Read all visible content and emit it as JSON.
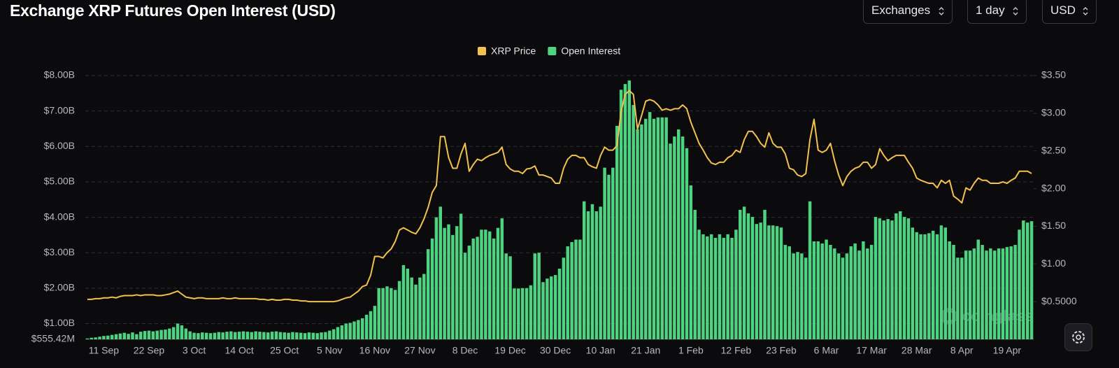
{
  "header": {
    "controls": [
      "Exchanges",
      "1 day",
      "USD"
    ]
  },
  "watermark": "coinglass",
  "chart_data": {
    "type": "bar",
    "title": "Exchange XRP Futures Open Interest (USD)",
    "categories": [
      null,
      null,
      null,
      null,
      "11 Sep",
      null,
      null,
      null,
      null,
      null,
      null,
      null,
      null,
      null,
      null,
      "22 Sep",
      null,
      null,
      null,
      null,
      null,
      null,
      null,
      null,
      null,
      null,
      "3 Oct",
      null,
      null,
      null,
      null,
      null,
      null,
      null,
      null,
      null,
      null,
      "14 Oct",
      null,
      null,
      null,
      null,
      null,
      null,
      null,
      null,
      null,
      null,
      "25 Oct",
      null,
      null,
      null,
      null,
      null,
      null,
      null,
      null,
      null,
      null,
      "5 Nov",
      null,
      null,
      null,
      null,
      null,
      null,
      null,
      null,
      null,
      null,
      "16 Nov",
      null,
      null,
      null,
      null,
      null,
      null,
      null,
      null,
      null,
      null,
      "27 Nov",
      null,
      null,
      null,
      null,
      null,
      null,
      null,
      null,
      null,
      null,
      "8 Dec",
      null,
      null,
      null,
      null,
      null,
      null,
      null,
      null,
      null,
      null,
      "19 Dec",
      null,
      null,
      null,
      null,
      null,
      null,
      null,
      null,
      null,
      null,
      "30 Dec",
      null,
      null,
      null,
      null,
      null,
      null,
      null,
      null,
      null,
      null,
      "10 Jan",
      null,
      null,
      null,
      null,
      null,
      null,
      null,
      null,
      null,
      null,
      "21 Jan",
      null,
      null,
      null,
      null,
      null,
      null,
      null,
      null,
      null,
      null,
      "1 Feb",
      null,
      null,
      null,
      null,
      null,
      null,
      null,
      null,
      null,
      null,
      "12 Feb",
      null,
      null,
      null,
      null,
      null,
      null,
      null,
      null,
      null,
      null,
      "23 Feb",
      null,
      null,
      null,
      null,
      null,
      null,
      null,
      null,
      null,
      null,
      "6 Mar",
      null,
      null,
      null,
      null,
      null,
      null,
      null,
      null,
      null,
      null,
      "17 Mar",
      null,
      null,
      null,
      null,
      null,
      null,
      null,
      null,
      null,
      null,
      "28 Mar",
      null,
      null,
      null,
      null,
      null,
      null,
      null,
      null,
      null,
      null,
      "8 Apr",
      null,
      null,
      null,
      null,
      null,
      null,
      null,
      null,
      null,
      null,
      "19 Apr",
      null,
      null,
      null,
      null,
      null,
      null
    ],
    "series": [
      {
        "name": "XRP Price",
        "type": "line",
        "axis": "y2",
        "color": "#f2c14e",
        "values": [
          0.53,
          0.53,
          0.54,
          0.54,
          0.55,
          0.55,
          0.56,
          0.55,
          0.57,
          0.58,
          0.58,
          0.58,
          0.59,
          0.58,
          0.59,
          0.59,
          0.59,
          0.58,
          0.58,
          0.59,
          0.6,
          0.62,
          0.64,
          0.6,
          0.56,
          0.55,
          0.54,
          0.55,
          0.55,
          0.54,
          0.54,
          0.54,
          0.54,
          0.55,
          0.54,
          0.54,
          0.55,
          0.54,
          0.54,
          0.54,
          0.54,
          0.54,
          0.53,
          0.53,
          0.52,
          0.53,
          0.52,
          0.52,
          0.53,
          0.53,
          0.52,
          0.52,
          0.51,
          0.51,
          0.5,
          0.5,
          0.5,
          0.5,
          0.5,
          0.5,
          0.5,
          0.51,
          0.53,
          0.55,
          0.56,
          0.6,
          0.64,
          0.7,
          0.72,
          0.85,
          1.1,
          1.1,
          1.08,
          1.15,
          1.2,
          1.3,
          1.45,
          1.48,
          1.45,
          1.42,
          1.4,
          1.48,
          1.6,
          1.75,
          1.95,
          2.04,
          2.69,
          2.69,
          2.41,
          2.27,
          2.27,
          2.46,
          2.6,
          2.23,
          2.32,
          2.39,
          2.37,
          2.41,
          2.44,
          2.46,
          2.48,
          2.55,
          2.32,
          2.26,
          2.23,
          2.23,
          2.2,
          2.26,
          2.27,
          2.3,
          2.18,
          2.18,
          2.16,
          2.14,
          2.07,
          2.07,
          2.27,
          2.39,
          2.44,
          2.44,
          2.41,
          2.41,
          2.32,
          2.29,
          2.27,
          2.44,
          2.55,
          2.51,
          2.51,
          2.57,
          3.02,
          3.25,
          3.3,
          3.25,
          2.79,
          2.97,
          3.16,
          3.18,
          3.16,
          3.11,
          3.04,
          3.06,
          3.04,
          3.06,
          3.06,
          3.11,
          3.06,
          2.88,
          2.74,
          2.6,
          2.51,
          2.41,
          2.34,
          2.32,
          2.35,
          2.35,
          2.41,
          2.44,
          2.51,
          2.48,
          2.65,
          2.76,
          2.76,
          2.69,
          2.6,
          2.55,
          2.74,
          2.6,
          2.55,
          2.55,
          2.46,
          2.27,
          2.25,
          2.18,
          2.16,
          2.2,
          2.65,
          2.92,
          2.51,
          2.48,
          2.51,
          2.6,
          2.37,
          2.18,
          2.04,
          2.16,
          2.23,
          2.27,
          2.29,
          2.35,
          2.35,
          2.27,
          2.32,
          2.53,
          2.44,
          2.37,
          2.41,
          2.44,
          2.44,
          2.44,
          2.35,
          2.27,
          2.14,
          2.11,
          2.09,
          2.07,
          2.07,
          2.01,
          2.11,
          2.07,
          2.11,
          1.9,
          1.86,
          1.81,
          2.01,
          1.98,
          2.07,
          2.14,
          2.11,
          2.11,
          2.07,
          2.07,
          2.07,
          2.09,
          2.07,
          2.11,
          2.14,
          2.23,
          2.23,
          2.23,
          2.2
        ]
      },
      {
        "name": "Open Interest",
        "type": "bar",
        "color": "#4ed480",
        "values": [
          0.58,
          0.6,
          0.61,
          0.63,
          0.65,
          0.66,
          0.68,
          0.7,
          0.72,
          0.74,
          0.71,
          0.75,
          0.7,
          0.77,
          0.79,
          0.8,
          0.78,
          0.8,
          0.82,
          0.83,
          0.86,
          0.9,
          1.0,
          0.95,
          0.86,
          0.78,
          0.74,
          0.73,
          0.75,
          0.74,
          0.73,
          0.74,
          0.76,
          0.75,
          0.77,
          0.78,
          0.76,
          0.77,
          0.78,
          0.77,
          0.76,
          0.78,
          0.77,
          0.76,
          0.75,
          0.77,
          0.78,
          0.76,
          0.75,
          0.74,
          0.76,
          0.75,
          0.74,
          0.73,
          0.75,
          0.74,
          0.73,
          0.75,
          0.76,
          0.8,
          0.84,
          0.9,
          0.95,
          1.0,
          1.02,
          1.06,
          1.1,
          1.15,
          1.25,
          1.35,
          1.5,
          2.0,
          2.0,
          2.05,
          2.0,
          1.95,
          2.2,
          2.65,
          2.55,
          2.3,
          2.1,
          2.3,
          2.4,
          3.1,
          3.4,
          4.0,
          4.3,
          3.7,
          3.8,
          3.5,
          3.75,
          4.1,
          3.0,
          3.2,
          3.4,
          3.45,
          3.65,
          3.65,
          3.6,
          3.4,
          3.7,
          3.97,
          2.98,
          2.9,
          1.99,
          1.99,
          2.0,
          2.0,
          2.08,
          2.98,
          3.0,
          2.17,
          2.27,
          2.33,
          2.37,
          2.55,
          2.86,
          3.18,
          3.3,
          3.37,
          3.37,
          4.45,
          4.17,
          4.37,
          4.17,
          4.3,
          5.4,
          5.2,
          5.4,
          6.58,
          7.6,
          7.76,
          7.86,
          7.17,
          6.48,
          6.62,
          6.78,
          6.97,
          6.78,
          6.82,
          6.82,
          6.82,
          6.08,
          6.28,
          6.48,
          6.28,
          5.95,
          4.9,
          4.21,
          3.65,
          3.52,
          3.46,
          3.52,
          3.42,
          3.52,
          3.42,
          3.52,
          3.42,
          3.65,
          4.21,
          4.3,
          4.11,
          4.01,
          3.81,
          3.85,
          4.21,
          3.77,
          3.77,
          3.75,
          3.71,
          3.22,
          3.18,
          2.98,
          3.02,
          2.98,
          2.86,
          4.45,
          3.32,
          3.32,
          3.26,
          3.37,
          3.22,
          3.12,
          2.98,
          2.86,
          2.98,
          3.18,
          3.26,
          3.06,
          3.32,
          3.12,
          3.22,
          4.01,
          3.97,
          3.91,
          3.95,
          3.91,
          4.11,
          4.17,
          4.01,
          3.97,
          3.71,
          3.58,
          3.52,
          3.52,
          3.55,
          3.62,
          3.52,
          3.77,
          3.71,
          3.32,
          3.22,
          2.86,
          2.86,
          3.06,
          3.06,
          3.12,
          3.37,
          3.22,
          3.06,
          3.12,
          3.06,
          3.12,
          3.12,
          3.16,
          3.18,
          3.22,
          3.65,
          3.91,
          3.85,
          3.89
        ]
      }
    ],
    "ylim": [
      0.55542,
      8
    ],
    "yticks": [
      {
        "value": 0.55542,
        "label": "$555.42M"
      },
      {
        "value": 1,
        "label": "$1.00B"
      },
      {
        "value": 2,
        "label": "$2.00B"
      },
      {
        "value": 3,
        "label": "$3.00B"
      },
      {
        "value": 4,
        "label": "$4.00B"
      },
      {
        "value": 5,
        "label": "$5.00B"
      },
      {
        "value": 6,
        "label": "$6.00B"
      },
      {
        "value": 7,
        "label": "$7.00B"
      },
      {
        "value": 8,
        "label": "$8.00B"
      }
    ],
    "y2lim": [
      0,
      3.5
    ],
    "y2ticks": [
      {
        "value": 0.5,
        "label": "$0.5000"
      },
      {
        "value": 1,
        "label": "$1.00"
      },
      {
        "value": 1.5,
        "label": "$1.50"
      },
      {
        "value": 2,
        "label": "$2.00"
      },
      {
        "value": 2.5,
        "label": "$2.50"
      },
      {
        "value": 3,
        "label": "$3.00"
      },
      {
        "value": 3.5,
        "label": "$3.50"
      }
    ],
    "grid": true,
    "legend": "top"
  }
}
